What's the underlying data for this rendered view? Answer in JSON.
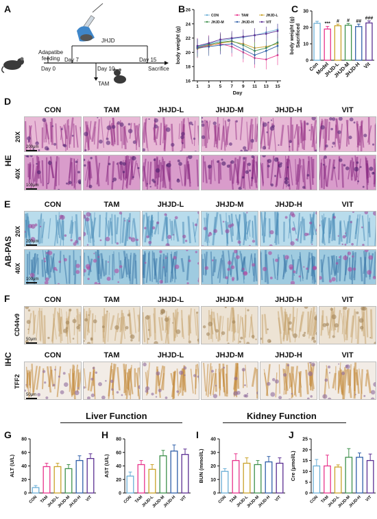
{
  "panels": {
    "A": "A",
    "B": "B",
    "C": "C",
    "D": "D",
    "E": "E",
    "F": "F",
    "G": "G",
    "H": "H",
    "I": "I",
    "J": "J"
  },
  "timeline": {
    "drug": "JHJD",
    "feeding": "Adapatibe\nfeeding",
    "day0": "Day 0",
    "day7": "Day 7",
    "day10": "Day 10",
    "day15": "Day 15",
    "sacrifice": "Sacrifice",
    "tam": "TAM"
  },
  "groups": [
    "CON",
    "TAM",
    "JHJD-L",
    "JHJD-M",
    "JHJD-H",
    "VIT"
  ],
  "group_colors": [
    "#6aaed6",
    "#e8318b",
    "#c9a227",
    "#3c8f4a",
    "#2f5fa8",
    "#5a2d91"
  ],
  "histology": {
    "he_label": "HE",
    "abpas_label": "AB-PAS",
    "ihc_label": "IHC",
    "mag20": "20X",
    "mag40": "40X",
    "cd44": "CD44v9",
    "tff2": "TFF2",
    "scale200": "200μm",
    "scale100": "100μm",
    "scale50": "50μm"
  },
  "sections": {
    "liver": "Liver Function",
    "kidney": "Kidney Function"
  },
  "chart_data": [
    {
      "id": "B",
      "type": "line",
      "xlabel": "Day",
      "ylabel": "body weight (g)",
      "ylim": [
        16,
        26
      ],
      "yticks": [
        16,
        18,
        20,
        22,
        24,
        26
      ],
      "x": [
        1,
        3,
        5,
        7,
        9,
        11,
        13,
        15
      ],
      "legend": [
        "CON",
        "TAM",
        "JHJD-L",
        "JHJD-M",
        "JHJD-H",
        "VIT"
      ],
      "series": [
        {
          "name": "CON",
          "values": [
            20.8,
            21.2,
            21.6,
            21.9,
            22.1,
            22.4,
            22.8,
            23.2
          ],
          "err": 0.8
        },
        {
          "name": "TAM",
          "values": [
            20.6,
            21.0,
            21.2,
            20.8,
            20.0,
            19.2,
            19.0,
            19.6
          ],
          "err": 1.4
        },
        {
          "name": "JHJD-L",
          "values": [
            20.5,
            20.9,
            21.3,
            21.5,
            21.2,
            20.6,
            20.8,
            21.2
          ],
          "err": 1.2
        },
        {
          "name": "JHJD-M",
          "values": [
            20.7,
            21.1,
            21.4,
            21.6,
            21.0,
            20.2,
            20.6,
            21.4
          ],
          "err": 1.2
        },
        {
          "name": "JHJD-H",
          "values": [
            20.6,
            20.8,
            21.0,
            21.2,
            20.4,
            19.6,
            20.2,
            20.9
          ],
          "err": 1.3
        },
        {
          "name": "VIT",
          "values": [
            20.9,
            21.3,
            21.8,
            22.0,
            22.2,
            22.4,
            22.6,
            23.0
          ],
          "err": 1.0
        }
      ]
    },
    {
      "id": "C",
      "type": "bar",
      "ylabel": "body weight (g)\nSacrificed",
      "ylim": [
        0,
        30
      ],
      "yticks": [
        0,
        10,
        20,
        30
      ],
      "categories": [
        "Con",
        "Model",
        "JHJD-L",
        "JHJD-M",
        "JHJD-H",
        "Vit"
      ],
      "values": [
        22.5,
        19.0,
        21.0,
        21.3,
        20.5,
        22.7
      ],
      "err": [
        1.2,
        1.6,
        1.0,
        1.1,
        1.5,
        1.2
      ],
      "annotations": [
        "",
        "***",
        "#",
        "#",
        "##",
        "###"
      ]
    },
    {
      "id": "G",
      "type": "bar",
      "ylabel": "ALT (U/L)",
      "ylim": [
        0,
        80
      ],
      "yticks": [
        0,
        20,
        40,
        60,
        80
      ],
      "categories": [
        "CON",
        "TAM",
        "JHJD-L",
        "JHJD-M",
        "JHJD-H",
        "VIT"
      ],
      "values": [
        8,
        39,
        39,
        36,
        48,
        51
      ],
      "err": [
        3,
        5,
        5,
        6,
        7,
        7
      ]
    },
    {
      "id": "H",
      "type": "bar",
      "ylabel": "AST (U/L)",
      "ylim": [
        0,
        80
      ],
      "yticks": [
        0,
        20,
        40,
        60,
        80
      ],
      "categories": [
        "CON",
        "TAM",
        "JHJD-L",
        "JHJD-M",
        "JHJD-H",
        "VIT"
      ],
      "values": [
        25,
        42,
        35,
        55,
        62,
        57
      ],
      "err": [
        6,
        6,
        7,
        8,
        9,
        8
      ]
    },
    {
      "id": "I",
      "type": "bar",
      "ylabel": "BUN (mmol/L)",
      "ylim": [
        0,
        40
      ],
      "yticks": [
        0,
        10,
        20,
        30,
        40
      ],
      "categories": [
        "CON",
        "TAM",
        "JHJD-L",
        "JHJD-M",
        "JHJD-H",
        "VIT"
      ],
      "values": [
        16,
        24,
        22,
        21,
        23,
        22
      ],
      "err": [
        2,
        5,
        4,
        3,
        4,
        4
      ]
    },
    {
      "id": "J",
      "type": "bar",
      "ylabel": "Cre (μmol/L)",
      "ylim": [
        0,
        25
      ],
      "yticks": [
        0,
        5,
        10,
        15,
        20,
        25
      ],
      "categories": [
        "CON",
        "TAM",
        "JHJD-L",
        "JHJD-M",
        "JHJD-H",
        "VIT"
      ],
      "values": [
        12.5,
        12.5,
        12,
        16.5,
        16.5,
        15
      ],
      "err": [
        3,
        5,
        1,
        4,
        2,
        3
      ]
    }
  ]
}
